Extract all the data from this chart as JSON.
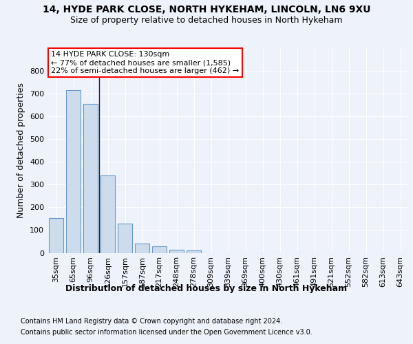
{
  "title1": "14, HYDE PARK CLOSE, NORTH HYKEHAM, LINCOLN, LN6 9XU",
  "title2": "Size of property relative to detached houses in North Hykeham",
  "xlabel": "Distribution of detached houses by size in North Hykeham",
  "ylabel": "Number of detached properties",
  "footer1": "Contains HM Land Registry data © Crown copyright and database right 2024.",
  "footer2": "Contains public sector information licensed under the Open Government Licence v3.0.",
  "categories": [
    "35sqm",
    "65sqm",
    "96sqm",
    "126sqm",
    "157sqm",
    "187sqm",
    "217sqm",
    "248sqm",
    "278sqm",
    "309sqm",
    "339sqm",
    "369sqm",
    "400sqm",
    "430sqm",
    "461sqm",
    "491sqm",
    "521sqm",
    "552sqm",
    "582sqm",
    "613sqm",
    "643sqm"
  ],
  "values": [
    152,
    715,
    655,
    340,
    130,
    42,
    30,
    13,
    10,
    0,
    0,
    0,
    0,
    0,
    0,
    0,
    0,
    0,
    0,
    0,
    0
  ],
  "bar_color": "#ccdcec",
  "bar_edge_color": "#6699cc",
  "ylim": [
    0,
    900
  ],
  "yticks": [
    0,
    100,
    200,
    300,
    400,
    500,
    600,
    700,
    800,
    900
  ],
  "property_label": "14 HYDE PARK CLOSE: 130sqm",
  "annotation_line1": "← 77% of detached houses are smaller (1,585)",
  "annotation_line2": "22% of semi-detached houses are larger (462) →",
  "vline_x": 2.5,
  "background_color": "#eef2fb",
  "grid_color": "#ffffff",
  "title_fontsize": 10,
  "subtitle_fontsize": 9,
  "axis_label_fontsize": 9,
  "tick_fontsize": 8,
  "footer_fontsize": 7,
  "annotation_fontsize": 8
}
